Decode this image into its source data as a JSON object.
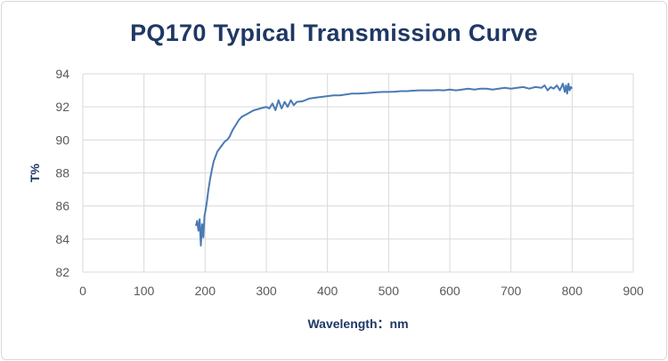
{
  "chart_data": {
    "type": "line",
    "title": "PQ170 Typical Transmission Curve",
    "xlabel": "Wavelength：nm",
    "ylabel": "T%",
    "xlim": [
      0,
      900
    ],
    "ylim": [
      82,
      94
    ],
    "x_ticks": [
      0,
      100,
      200,
      300,
      400,
      500,
      600,
      700,
      800,
      900
    ],
    "y_ticks": [
      82,
      84,
      86,
      88,
      90,
      92,
      94
    ],
    "x_tick_labels": [
      "0",
      "100",
      "200",
      "300",
      "400",
      "500",
      "600",
      "700",
      "800",
      "900"
    ],
    "y_tick_labels": [
      "82",
      "84",
      "86",
      "88",
      "90",
      "92",
      "94"
    ],
    "grid": true,
    "line_color": "#4a7ab5",
    "series": [
      {
        "name": "T%",
        "x": [
          185,
          187,
          189,
          191,
          193,
          195,
          197,
          199,
          201,
          203,
          205,
          208,
          211,
          214,
          217,
          220,
          224,
          228,
          232,
          236,
          240,
          245,
          250,
          255,
          260,
          265,
          270,
          275,
          280,
          285,
          290,
          295,
          300,
          305,
          310,
          315,
          320,
          325,
          330,
          335,
          340,
          345,
          350,
          360,
          370,
          380,
          390,
          400,
          410,
          420,
          430,
          440,
          450,
          460,
          470,
          480,
          490,
          500,
          510,
          520,
          530,
          540,
          550,
          560,
          570,
          580,
          590,
          600,
          610,
          620,
          630,
          640,
          650,
          660,
          670,
          680,
          690,
          700,
          710,
          720,
          730,
          740,
          750,
          755,
          760,
          765,
          770,
          775,
          780,
          785,
          788,
          790,
          792,
          794,
          796,
          798,
          800
        ],
        "values": [
          84.8,
          85.1,
          84.5,
          85.2,
          83.6,
          84.9,
          84.1,
          85.4,
          85.8,
          86.3,
          86.9,
          87.6,
          88.2,
          88.7,
          89.0,
          89.3,
          89.5,
          89.7,
          89.9,
          90.0,
          90.2,
          90.6,
          90.9,
          91.2,
          91.4,
          91.5,
          91.6,
          91.7,
          91.8,
          91.85,
          91.9,
          91.95,
          92.0,
          91.9,
          92.2,
          91.8,
          92.4,
          91.9,
          92.3,
          92.0,
          92.4,
          92.1,
          92.3,
          92.35,
          92.5,
          92.55,
          92.6,
          92.65,
          92.7,
          92.7,
          92.75,
          92.8,
          92.8,
          92.82,
          92.85,
          92.88,
          92.9,
          92.9,
          92.92,
          92.95,
          92.95,
          92.98,
          93.0,
          93.0,
          93.0,
          93.02,
          93.0,
          93.05,
          93.0,
          93.05,
          93.1,
          93.05,
          93.1,
          93.1,
          93.05,
          93.1,
          93.15,
          93.1,
          93.15,
          93.2,
          93.1,
          93.2,
          93.15,
          93.3,
          93.0,
          93.2,
          93.1,
          93.3,
          93.0,
          93.4,
          92.9,
          93.3,
          92.8,
          93.4,
          93.0,
          93.2,
          93.1
        ]
      }
    ]
  }
}
